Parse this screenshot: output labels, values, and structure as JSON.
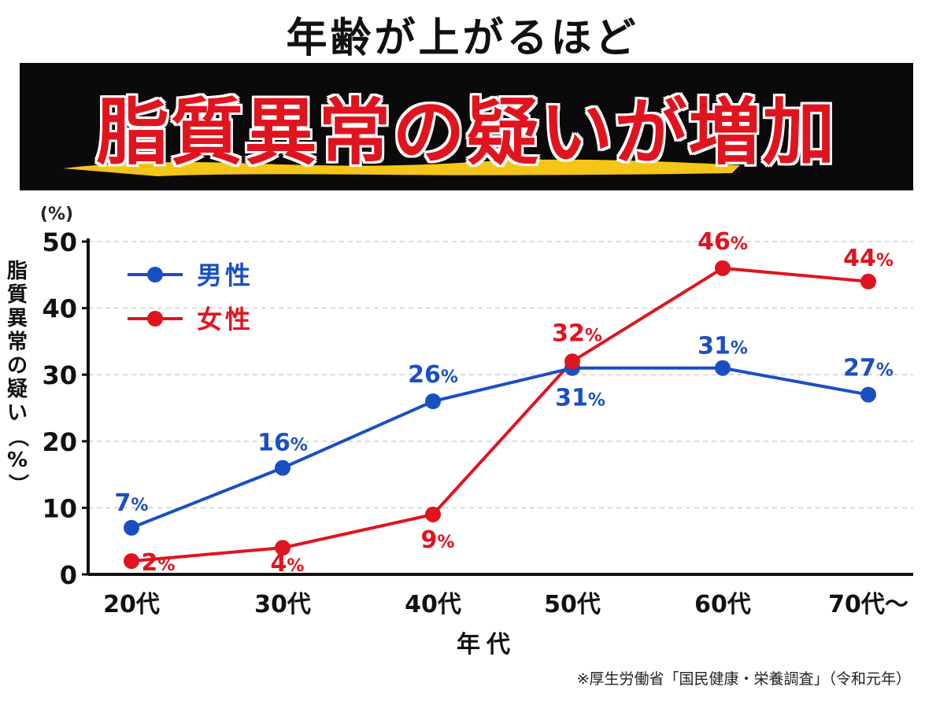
{
  "headline": "年齢が上がるほど",
  "banner_title": "脂質異常の疑いが増加",
  "source": "※厚生労働省「国民健康・栄養調査」（令和元年）",
  "colors": {
    "male": "#1a4fc4",
    "female": "#e0141e",
    "banner_bg": "#0a0a0a",
    "brush": "#f5c518"
  },
  "chart_data": {
    "type": "line",
    "categories": [
      "20代",
      "30代",
      "40代",
      "50代",
      "60代",
      "70代〜"
    ],
    "series": [
      {
        "name": "男性",
        "values": [
          7,
          16,
          26,
          31,
          31,
          27
        ],
        "labels": [
          "7%",
          "16%",
          "26%",
          "31%",
          "31%",
          "27%"
        ],
        "color": "#1a4fc4"
      },
      {
        "name": "女性",
        "values": [
          2,
          4,
          9,
          32,
          46,
          44
        ],
        "labels": [
          "2%",
          "4%",
          "9%",
          "32%",
          "46%",
          "44%"
        ],
        "color": "#e0141e"
      }
    ],
    "xlabel": "年代",
    "ylabel": "脂質異常の疑い（%）",
    "yunit": "(%)",
    "ylim": [
      0,
      50
    ],
    "yticks": [
      0,
      10,
      20,
      30,
      40,
      50
    ],
    "grid": true,
    "legend": "top-left"
  }
}
